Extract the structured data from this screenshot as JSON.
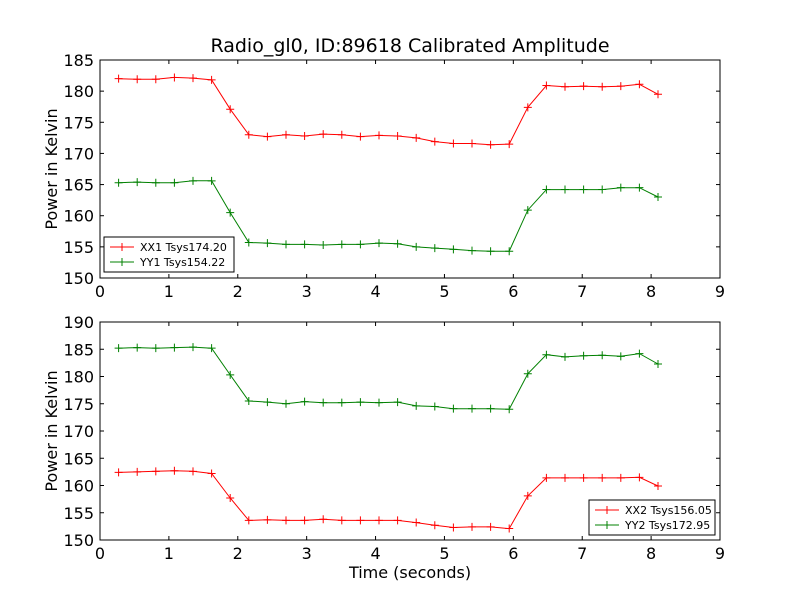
{
  "figure": {
    "title": "Radio_gl0, ID:89618 Calibrated Amplitude"
  },
  "colors": {
    "xx": "#ff0000",
    "yy": "#008000"
  },
  "chart_data": [
    {
      "type": "line",
      "title": "Radio_gl0, ID:89618 Calibrated Amplitude",
      "xlabel": "",
      "ylabel": "Power in Kelvin",
      "xlim": [
        0,
        9
      ],
      "ylim": [
        150,
        185
      ],
      "xticks": [
        0,
        1,
        2,
        3,
        4,
        5,
        6,
        7,
        8,
        9
      ],
      "yticks": [
        150,
        155,
        160,
        165,
        170,
        175,
        180,
        185
      ],
      "grid": false,
      "legend_position": "lower-left",
      "x": [
        0.27,
        0.54,
        0.81,
        1.08,
        1.35,
        1.62,
        1.89,
        2.16,
        2.43,
        2.7,
        2.97,
        3.24,
        3.51,
        3.78,
        4.05,
        4.32,
        4.59,
        4.86,
        5.13,
        5.4,
        5.67,
        5.94,
        6.21,
        6.48,
        6.75,
        7.02,
        7.29,
        7.56,
        7.83,
        8.1
      ],
      "series": [
        {
          "name": "XX1 Tsys174.20",
          "color": "#ff0000",
          "values": [
            182.0,
            181.9,
            181.9,
            182.2,
            182.1,
            181.8,
            177.1,
            173.0,
            172.7,
            173.0,
            172.8,
            173.1,
            173.0,
            172.7,
            172.9,
            172.8,
            172.5,
            171.9,
            171.6,
            171.6,
            171.4,
            171.5,
            177.4,
            180.9,
            180.7,
            180.8,
            180.7,
            180.8,
            181.1,
            179.5
          ]
        },
        {
          "name": "YY1 Tsys154.22",
          "color": "#008000",
          "values": [
            165.3,
            165.4,
            165.3,
            165.3,
            165.6,
            165.6,
            160.5,
            155.7,
            155.6,
            155.4,
            155.4,
            155.3,
            155.4,
            155.4,
            155.6,
            155.5,
            155.0,
            154.8,
            154.6,
            154.4,
            154.3,
            154.3,
            160.9,
            164.2,
            164.2,
            164.2,
            164.2,
            164.5,
            164.5,
            163.0
          ]
        }
      ]
    },
    {
      "type": "line",
      "title": "",
      "xlabel": "Time (seconds)",
      "ylabel": "Power in Kelvin",
      "xlim": [
        0,
        9
      ],
      "ylim": [
        150,
        190
      ],
      "xticks": [
        0,
        1,
        2,
        3,
        4,
        5,
        6,
        7,
        8,
        9
      ],
      "yticks": [
        150,
        155,
        160,
        165,
        170,
        175,
        180,
        185,
        190
      ],
      "grid": false,
      "legend_position": "lower-right",
      "x": [
        0.27,
        0.54,
        0.81,
        1.08,
        1.35,
        1.62,
        1.89,
        2.16,
        2.43,
        2.7,
        2.97,
        3.24,
        3.51,
        3.78,
        4.05,
        4.32,
        4.59,
        4.86,
        5.13,
        5.4,
        5.67,
        5.94,
        6.21,
        6.48,
        6.75,
        7.02,
        7.29,
        7.56,
        7.83,
        8.1
      ],
      "series": [
        {
          "name": "XX2 Tsys156.05",
          "color": "#ff0000",
          "values": [
            162.4,
            162.5,
            162.6,
            162.7,
            162.6,
            162.2,
            157.7,
            153.6,
            153.7,
            153.6,
            153.6,
            153.8,
            153.6,
            153.6,
            153.6,
            153.6,
            153.2,
            152.7,
            152.3,
            152.4,
            152.4,
            152.1,
            158.1,
            161.4,
            161.4,
            161.4,
            161.4,
            161.4,
            161.5,
            159.9
          ]
        },
        {
          "name": "YY2 Tsys172.95",
          "color": "#008000",
          "values": [
            185.2,
            185.3,
            185.2,
            185.3,
            185.4,
            185.2,
            180.3,
            175.5,
            175.3,
            175.0,
            175.4,
            175.2,
            175.2,
            175.3,
            175.2,
            175.3,
            174.6,
            174.5,
            174.1,
            174.1,
            174.1,
            174.0,
            180.5,
            184.0,
            183.6,
            183.8,
            183.9,
            183.7,
            184.2,
            182.3
          ]
        }
      ]
    }
  ]
}
